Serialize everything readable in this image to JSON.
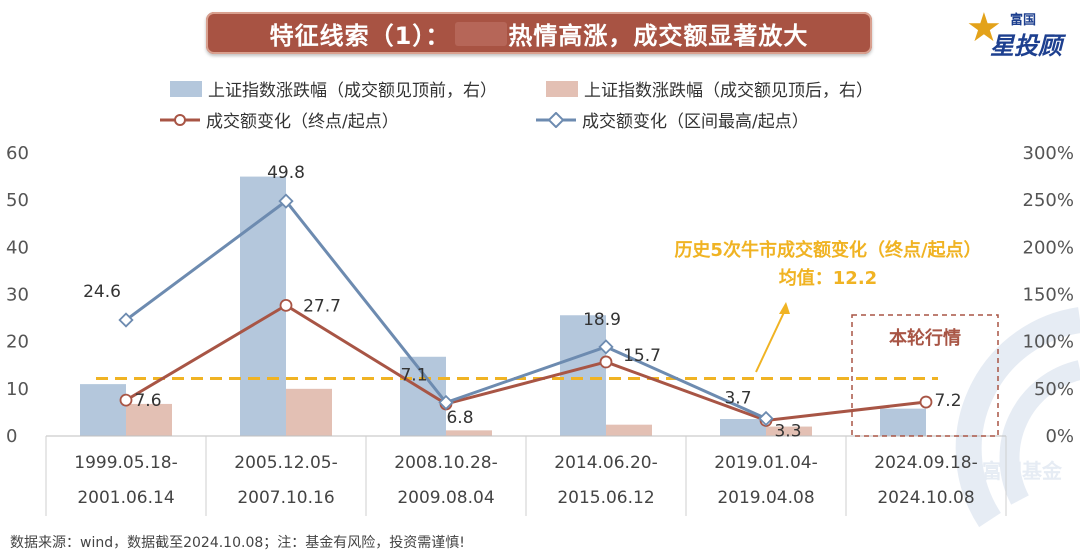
{
  "title": "特征线索（1）：",
  "title_tail": "热情高涨，成交额显著放大",
  "logo": {
    "line1": "富国",
    "line2": "星投顾",
    "watermark": "富国基金"
  },
  "legend": {
    "bar_before": "上证指数涨跌幅（成交额见顶前，右）",
    "bar_after": "上证指数涨跌幅（成交额见顶后，右）",
    "line_end": "成交额变化（终点/起点）",
    "line_max": "成交额变化（区间最高/起点）"
  },
  "colors": {
    "bar_before": "#b4c7dc",
    "bar_after": "#e3c0b4",
    "line_end": "#a85545",
    "line_max": "#6d8bb0",
    "avg_line": "#f0b323",
    "annotation": "#f0b323",
    "current_box": "#a85545"
  },
  "annotation": {
    "line1": "历史5次牛市成交额变化（终点/起点）",
    "line2": "均值：12.2"
  },
  "current_label": "本轮行情",
  "footnote": "数据来源：wind，数据截至2024.10.08；注：基金有风险，投资需谨慎!",
  "chart_data": {
    "type": "bar",
    "categories": [
      [
        "1999.05.18-",
        "2001.06.14"
      ],
      [
        "2005.12.05-",
        "2007.10.16"
      ],
      [
        "2008.10.28-",
        "2009.08.04"
      ],
      [
        "2014.06.20-",
        "2015.06.12"
      ],
      [
        "2019.01.04-",
        "2019.04.08"
      ],
      [
        "2024.09.18-",
        "2024.10.08"
      ]
    ],
    "left_axis": {
      "ylim": [
        0,
        60
      ],
      "ticks": [
        0,
        10,
        20,
        30,
        40,
        50,
        60
      ]
    },
    "right_axis": {
      "ylim": [
        0,
        300
      ],
      "ticks": [
        "0%",
        "50%",
        "100%",
        "150%",
        "200%",
        "250%",
        "300%"
      ]
    },
    "series": [
      {
        "name": "上证指数涨跌幅（成交额见顶前，右）",
        "type": "bar",
        "axis": "right",
        "values": [
          55,
          275,
          84,
          128,
          18,
          29
        ]
      },
      {
        "name": "上证指数涨跌幅（成交额见顶后，右）",
        "type": "bar",
        "axis": "right",
        "values": [
          34,
          50,
          6,
          12,
          10,
          null
        ]
      },
      {
        "name": "成交额变化（终点/起点）",
        "type": "line",
        "axis": "left",
        "values": [
          7.6,
          27.7,
          6.8,
          15.7,
          3.3,
          7.2
        ],
        "labels": [
          "7.6",
          "27.7",
          "6.8",
          "15.7",
          "3.3",
          "7.2"
        ]
      },
      {
        "name": "成交额变化（区间最高/起点）",
        "type": "line",
        "axis": "left",
        "values": [
          24.6,
          49.8,
          7.1,
          18.9,
          3.7,
          null
        ],
        "labels": [
          "24.6",
          "49.8",
          "7.1",
          "18.9",
          "3.7",
          ""
        ]
      }
    ],
    "average": {
      "value": 12.2,
      "axis": "left"
    },
    "grid": false,
    "legend_position": "top"
  }
}
